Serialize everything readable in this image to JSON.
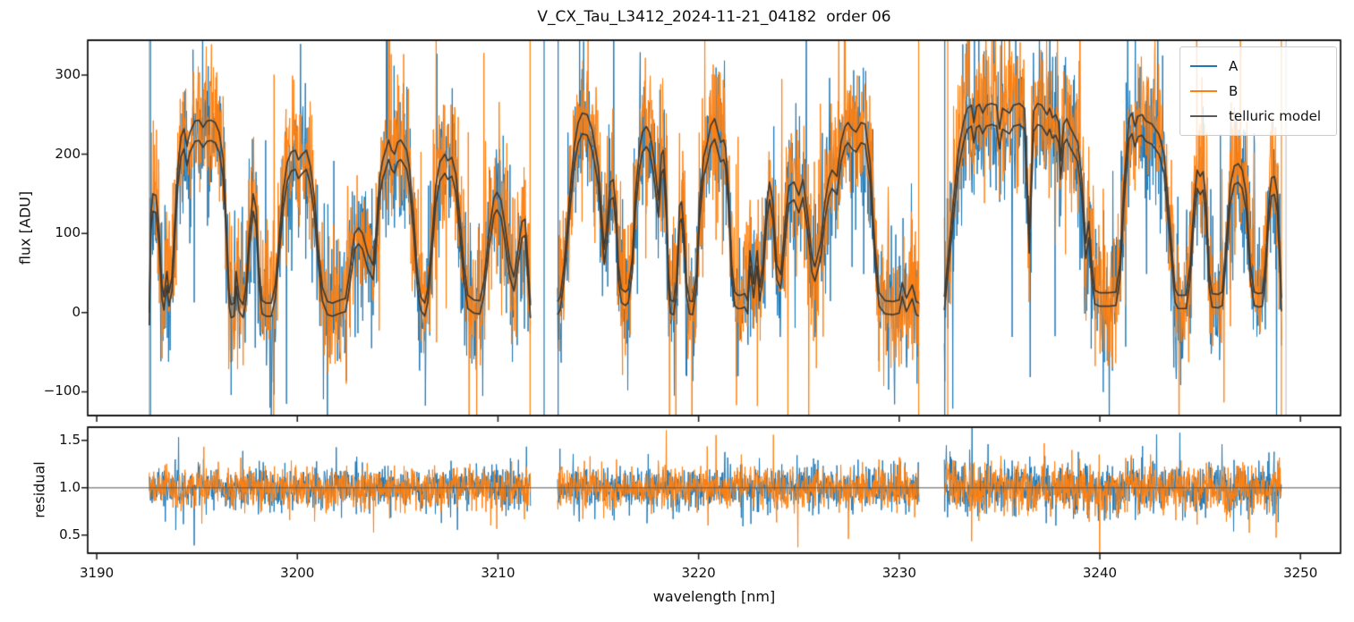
{
  "title": "V_CX_Tau_L3412_2024-11-21_04182  order 06",
  "labels": {
    "xlabel": "wavelength [nm]",
    "flux_ylabel": "flux [ADU]",
    "residual_ylabel": "residual"
  },
  "legend": {
    "entries": [
      {
        "label": "A",
        "color": "#1f77b4"
      },
      {
        "label": "B",
        "color": "#ff7f0e"
      },
      {
        "label": "telluric model",
        "color": "#595959"
      }
    ]
  },
  "chart_data": {
    "type": "line",
    "title": "V_CX_Tau_L3412_2024-11-21_04182  order 06",
    "xlabel": "wavelength [nm]",
    "grid": false,
    "legend_position": "upper right",
    "panels": [
      {
        "name": "flux",
        "ylabel": "flux [ADU]",
        "ylim": [
          -130,
          344
        ],
        "yticks": [
          -100,
          0,
          100,
          200,
          300
        ],
        "xlim": [
          3189.55,
          3252.0
        ],
        "xticks": [
          3190,
          3200,
          3210,
          3220,
          3230,
          3240,
          3250
        ]
      },
      {
        "name": "residual",
        "ylabel": "residual",
        "ylim": [
          0.31,
          1.64
        ],
        "yticks": [
          0.5,
          1.0,
          1.5
        ],
        "xlim": [
          3189.55,
          3252.0
        ],
        "baseline": 1.0
      }
    ],
    "series": [
      {
        "name": "A",
        "color": "#1f77b4"
      },
      {
        "name": "B",
        "color": "#ff7f0e"
      },
      {
        "name": "telluric model",
        "color": "#3e3a34"
      }
    ],
    "segments_nm": [
      [
        3192.62,
        3211.63
      ],
      [
        3212.97,
        3230.99
      ],
      [
        3232.25,
        3249.06
      ]
    ],
    "model_b_transform": {
      "scale": 0.96,
      "offset": -16
    },
    "noise": {
      "seed": 20241121,
      "flux_sigma_adu": 45,
      "flux_spike_sigma_adu": 120,
      "flux_spike_prob": 0.06,
      "residual_sigma": [
        0.105,
        0.115,
        0.135
      ],
      "residual_spike_sigma": 0.22,
      "residual_spike_prob": 0.04,
      "sample_step_nm": 0.02
    },
    "edge_spikes": [
      {
        "nm": 3192.62,
        "color": "#b0b0b0"
      },
      {
        "nm": 3192.68,
        "color": "#1f77b4"
      },
      {
        "nm": 3211.6,
        "color": "#ff7f0e"
      },
      {
        "nm": 3212.3,
        "color": "#1f77b4"
      },
      {
        "nm": 3213.0,
        "color": "#1f77b4"
      },
      {
        "nm": 3230.97,
        "color": "#ff7f0e"
      },
      {
        "nm": 3232.27,
        "color": "#1f77b4"
      },
      {
        "nm": 3232.42,
        "color": "#ff7f0e"
      },
      {
        "nm": 3249.05,
        "color": "#ff7f0e"
      },
      {
        "nm": 3249.28,
        "color": "#c0c0c0"
      }
    ],
    "telluric_model_nm_adu": [
      [
        [
          3192.62,
          0
        ],
        [
          3192.7,
          125
        ],
        [
          3192.8,
          150
        ],
        [
          3192.95,
          148
        ],
        [
          3193.1,
          110
        ],
        [
          3193.25,
          35
        ],
        [
          3193.35,
          20
        ],
        [
          3193.5,
          52
        ],
        [
          3193.6,
          25
        ],
        [
          3193.75,
          45
        ],
        [
          3193.9,
          120
        ],
        [
          3194.05,
          185
        ],
        [
          3194.2,
          222
        ],
        [
          3194.35,
          232
        ],
        [
          3194.5,
          210
        ],
        [
          3194.65,
          228
        ],
        [
          3194.9,
          242
        ],
        [
          3195.1,
          243
        ],
        [
          3195.3,
          234
        ],
        [
          3195.5,
          242
        ],
        [
          3195.7,
          243
        ],
        [
          3195.9,
          240
        ],
        [
          3196.1,
          228
        ],
        [
          3196.3,
          195
        ],
        [
          3196.45,
          120
        ],
        [
          3196.6,
          25
        ],
        [
          3196.7,
          10
        ],
        [
          3196.85,
          12
        ],
        [
          3196.95,
          52
        ],
        [
          3197.1,
          18
        ],
        [
          3197.3,
          10
        ],
        [
          3197.45,
          35
        ],
        [
          3197.6,
          100
        ],
        [
          3197.8,
          150
        ],
        [
          3197.95,
          130
        ],
        [
          3198.1,
          50
        ],
        [
          3198.25,
          15
        ],
        [
          3198.45,
          12
        ],
        [
          3198.7,
          12
        ],
        [
          3198.9,
          35
        ],
        [
          3199.1,
          95
        ],
        [
          3199.3,
          155
        ],
        [
          3199.5,
          190
        ],
        [
          3199.7,
          203
        ],
        [
          3199.9,
          205
        ],
        [
          3200.05,
          193
        ],
        [
          3200.25,
          200
        ],
        [
          3200.45,
          205
        ],
        [
          3200.65,
          185
        ],
        [
          3200.85,
          145
        ],
        [
          3201.05,
          80
        ],
        [
          3201.25,
          32
        ],
        [
          3201.5,
          14
        ],
        [
          3201.75,
          12
        ],
        [
          3201.95,
          14
        ],
        [
          3202.15,
          16
        ],
        [
          3202.4,
          18
        ],
        [
          3202.6,
          50
        ],
        [
          3202.85,
          100
        ],
        [
          3203.05,
          107
        ],
        [
          3203.25,
          100
        ],
        [
          3203.5,
          75
        ],
        [
          3203.78,
          60
        ],
        [
          3203.95,
          110
        ],
        [
          3204.1,
          170
        ],
        [
          3204.25,
          192
        ],
        [
          3204.4,
          205
        ],
        [
          3204.55,
          218
        ],
        [
          3204.7,
          205
        ],
        [
          3204.85,
          200
        ],
        [
          3205.0,
          215
        ],
        [
          3205.15,
          218
        ],
        [
          3205.3,
          212
        ],
        [
          3205.45,
          205
        ],
        [
          3205.6,
          180
        ],
        [
          3205.8,
          120
        ],
        [
          3206.0,
          45
        ],
        [
          3206.15,
          20
        ],
        [
          3206.35,
          12
        ],
        [
          3206.5,
          30
        ],
        [
          3206.7,
          90
        ],
        [
          3206.9,
          160
        ],
        [
          3207.1,
          190
        ],
        [
          3207.35,
          200
        ],
        [
          3207.5,
          192
        ],
        [
          3207.7,
          196
        ],
        [
          3207.9,
          175
        ],
        [
          3208.1,
          120
        ],
        [
          3208.3,
          60
        ],
        [
          3208.5,
          22
        ],
        [
          3208.8,
          16
        ],
        [
          3209.1,
          15
        ],
        [
          3209.3,
          40
        ],
        [
          3209.55,
          100
        ],
        [
          3209.8,
          145
        ],
        [
          3209.95,
          152
        ],
        [
          3210.15,
          142
        ],
        [
          3210.35,
          110
        ],
        [
          3210.6,
          62
        ],
        [
          3210.8,
          45
        ],
        [
          3211.0,
          80
        ],
        [
          3211.2,
          115
        ],
        [
          3211.35,
          118
        ],
        [
          3211.5,
          60
        ],
        [
          3211.63,
          5
        ]
      ],
      [
        [
          3212.97,
          14
        ],
        [
          3213.1,
          20
        ],
        [
          3213.3,
          60
        ],
        [
          3213.55,
          140
        ],
        [
          3213.8,
          210
        ],
        [
          3214.0,
          240
        ],
        [
          3214.2,
          252
        ],
        [
          3214.45,
          250
        ],
        [
          3214.7,
          230
        ],
        [
          3215.0,
          185
        ],
        [
          3215.15,
          130
        ],
        [
          3215.3,
          80
        ],
        [
          3215.45,
          115
        ],
        [
          3215.6,
          165
        ],
        [
          3215.75,
          168
        ],
        [
          3215.9,
          128
        ],
        [
          3216.0,
          60
        ],
        [
          3216.15,
          30
        ],
        [
          3216.35,
          26
        ],
        [
          3216.5,
          30
        ],
        [
          3216.7,
          70
        ],
        [
          3216.85,
          150
        ],
        [
          3217.05,
          205
        ],
        [
          3217.2,
          228
        ],
        [
          3217.4,
          235
        ],
        [
          3217.55,
          228
        ],
        [
          3217.7,
          208
        ],
        [
          3217.85,
          178
        ],
        [
          3218.0,
          142
        ],
        [
          3218.15,
          200
        ],
        [
          3218.25,
          205
        ],
        [
          3218.4,
          140
        ],
        [
          3218.5,
          50
        ],
        [
          3218.6,
          16
        ],
        [
          3218.75,
          14
        ],
        [
          3218.9,
          40
        ],
        [
          3219.05,
          135
        ],
        [
          3219.15,
          140
        ],
        [
          3219.3,
          95
        ],
        [
          3219.4,
          38
        ],
        [
          3219.55,
          15
        ],
        [
          3219.7,
          14
        ],
        [
          3219.9,
          50
        ],
        [
          3220.05,
          140
        ],
        [
          3220.25,
          196
        ],
        [
          3220.45,
          216
        ],
        [
          3220.6,
          236
        ],
        [
          3220.8,
          245
        ],
        [
          3220.95,
          230
        ],
        [
          3221.1,
          215
        ],
        [
          3221.25,
          218
        ],
        [
          3221.35,
          208
        ],
        [
          3221.5,
          150
        ],
        [
          3221.65,
          60
        ],
        [
          3221.8,
          26
        ],
        [
          3221.95,
          22
        ],
        [
          3222.1,
          22
        ],
        [
          3222.3,
          24
        ],
        [
          3222.45,
          15
        ],
        [
          3222.56,
          78
        ],
        [
          3222.74,
          36
        ],
        [
          3222.92,
          78
        ],
        [
          3223.05,
          32
        ],
        [
          3223.2,
          60
        ],
        [
          3223.4,
          140
        ],
        [
          3223.54,
          165
        ],
        [
          3223.7,
          140
        ],
        [
          3223.9,
          60
        ],
        [
          3224.1,
          48
        ],
        [
          3224.3,
          110
        ],
        [
          3224.5,
          160
        ],
        [
          3224.75,
          165
        ],
        [
          3225.0,
          148
        ],
        [
          3225.2,
          168
        ],
        [
          3225.45,
          120
        ],
        [
          3225.65,
          70
        ],
        [
          3225.8,
          58
        ],
        [
          3226.1,
          90
        ],
        [
          3226.3,
          140
        ],
        [
          3226.5,
          170
        ],
        [
          3226.65,
          180
        ],
        [
          3226.9,
          172
        ],
        [
          3227.1,
          215
        ],
        [
          3227.3,
          235
        ],
        [
          3227.45,
          240
        ],
        [
          3227.65,
          232
        ],
        [
          3227.85,
          228
        ],
        [
          3228.1,
          240
        ],
        [
          3228.3,
          238
        ],
        [
          3228.55,
          190
        ],
        [
          3228.7,
          120
        ],
        [
          3228.8,
          80
        ],
        [
          3229.0,
          25
        ],
        [
          3229.3,
          15
        ],
        [
          3229.7,
          14
        ],
        [
          3230.0,
          16
        ],
        [
          3230.15,
          38
        ],
        [
          3230.35,
          18
        ],
        [
          3230.65,
          35
        ],
        [
          3230.85,
          14
        ],
        [
          3230.99,
          12
        ]
      ],
      [
        [
          3232.25,
          20
        ],
        [
          3232.4,
          60
        ],
        [
          3232.7,
          140
        ],
        [
          3232.95,
          205
        ],
        [
          3233.2,
          240
        ],
        [
          3233.4,
          258
        ],
        [
          3233.6,
          262
        ],
        [
          3233.72,
          240
        ],
        [
          3233.85,
          260
        ],
        [
          3234.0,
          263
        ],
        [
          3234.16,
          252
        ],
        [
          3234.35,
          262
        ],
        [
          3234.6,
          264
        ],
        [
          3234.85,
          262
        ],
        [
          3235.0,
          232
        ],
        [
          3235.15,
          258
        ],
        [
          3235.5,
          252
        ],
        [
          3235.7,
          262
        ],
        [
          3236.0,
          264
        ],
        [
          3236.25,
          258
        ],
        [
          3236.48,
          95
        ],
        [
          3236.7,
          255
        ],
        [
          3236.9,
          264
        ],
        [
          3237.1,
          262
        ],
        [
          3237.37,
          250
        ],
        [
          3237.5,
          258
        ],
        [
          3237.64,
          246
        ],
        [
          3237.8,
          250
        ],
        [
          3237.95,
          240
        ],
        [
          3238.05,
          192
        ],
        [
          3238.2,
          238
        ],
        [
          3238.35,
          245
        ],
        [
          3238.5,
          235
        ],
        [
          3238.7,
          225
        ],
        [
          3238.9,
          215
        ],
        [
          3239.1,
          170
        ],
        [
          3239.3,
          88
        ],
        [
          3239.45,
          115
        ],
        [
          3239.6,
          60
        ],
        [
          3239.75,
          28
        ],
        [
          3240.0,
          25
        ],
        [
          3240.4,
          25
        ],
        [
          3240.8,
          26
        ],
        [
          3241.0,
          60
        ],
        [
          3241.2,
          160
        ],
        [
          3241.45,
          245
        ],
        [
          3241.6,
          252
        ],
        [
          3241.75,
          235
        ],
        [
          3241.9,
          248
        ],
        [
          3242.1,
          250
        ],
        [
          3242.3,
          242
        ],
        [
          3242.6,
          238
        ],
        [
          3242.95,
          225
        ],
        [
          3243.2,
          200
        ],
        [
          3243.5,
          110
        ],
        [
          3243.75,
          30
        ],
        [
          3243.9,
          22
        ],
        [
          3244.3,
          22
        ],
        [
          3244.5,
          60
        ],
        [
          3244.7,
          140
        ],
        [
          3244.85,
          180
        ],
        [
          3245.0,
          172
        ],
        [
          3245.15,
          178
        ],
        [
          3245.3,
          140
        ],
        [
          3245.45,
          50
        ],
        [
          3245.6,
          24
        ],
        [
          3245.9,
          23
        ],
        [
          3246.1,
          26
        ],
        [
          3246.3,
          90
        ],
        [
          3246.5,
          160
        ],
        [
          3246.7,
          185
        ],
        [
          3246.9,
          188
        ],
        [
          3247.1,
          180
        ],
        [
          3247.3,
          150
        ],
        [
          3247.5,
          60
        ],
        [
          3247.7,
          26
        ],
        [
          3247.9,
          24
        ],
        [
          3248.1,
          25
        ],
        [
          3248.25,
          60
        ],
        [
          3248.4,
          130
        ],
        [
          3248.55,
          170
        ],
        [
          3248.7,
          172
        ],
        [
          3248.85,
          150
        ],
        [
          3249.0,
          60
        ],
        [
          3249.06,
          10
        ]
      ]
    ]
  }
}
